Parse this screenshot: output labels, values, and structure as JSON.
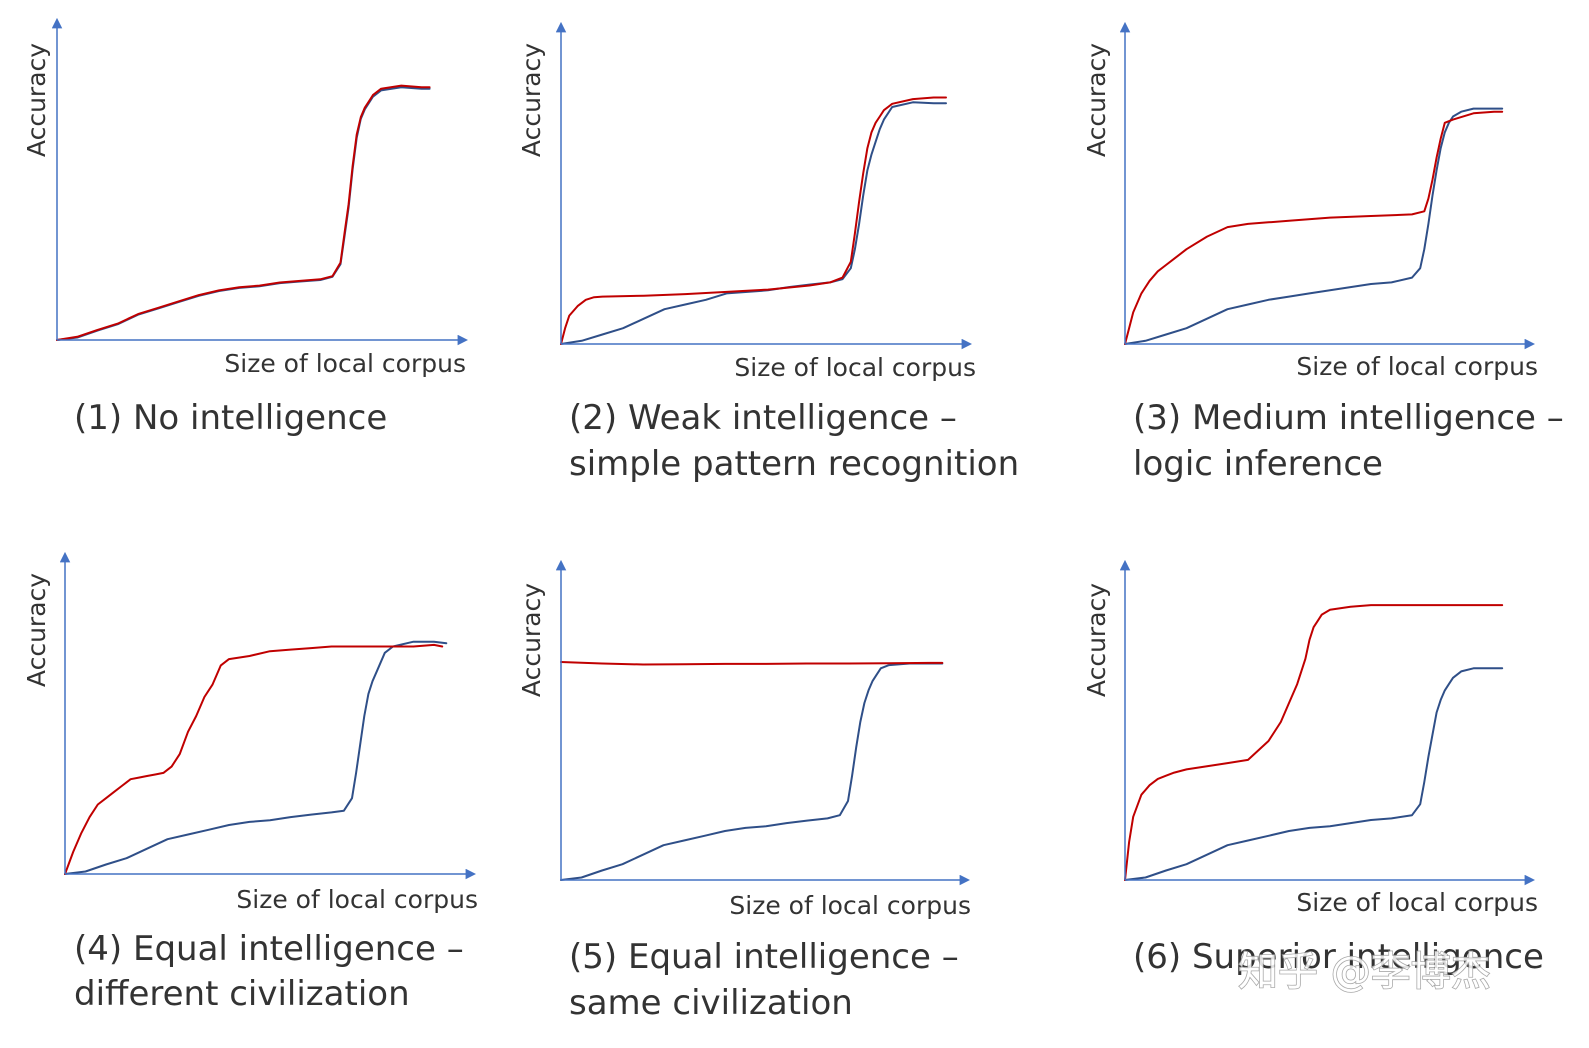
{
  "watermark": "知乎 @李博杰",
  "colors": {
    "axis": "#4472c4",
    "series_red": "#c00000",
    "series_blue": "#2f4f88",
    "text": "#333333"
  },
  "chart_data": [
    {
      "type": "line",
      "ylabel": "Accuracy",
      "xlabel": "Size of local corpus",
      "caption": [
        "(1) No intelligence"
      ],
      "xlim": [
        0,
        1
      ],
      "ylim": [
        0,
        1
      ],
      "grid": false,
      "series": [
        {
          "color": "#2f4f88",
          "x": [
            0,
            0.05,
            0.1,
            0.15,
            0.2,
            0.25,
            0.3,
            0.35,
            0.4,
            0.45,
            0.5,
            0.55,
            0.6,
            0.65,
            0.68,
            0.7,
            0.71,
            0.72,
            0.73,
            0.74,
            0.75,
            0.76,
            0.77,
            0.78,
            0.8,
            0.85,
            0.9,
            0.92
          ],
          "y": [
            0,
            0.008,
            0.03,
            0.05,
            0.08,
            0.1,
            0.12,
            0.14,
            0.155,
            0.165,
            0.17,
            0.18,
            0.185,
            0.19,
            0.2,
            0.24,
            0.33,
            0.42,
            0.54,
            0.64,
            0.7,
            0.73,
            0.75,
            0.77,
            0.79,
            0.8,
            0.795,
            0.795
          ]
        },
        {
          "color": "#c00000",
          "x": [
            0,
            0.05,
            0.1,
            0.15,
            0.2,
            0.25,
            0.3,
            0.35,
            0.4,
            0.45,
            0.5,
            0.55,
            0.6,
            0.65,
            0.68,
            0.7,
            0.71,
            0.72,
            0.73,
            0.74,
            0.75,
            0.76,
            0.77,
            0.78,
            0.8,
            0.85,
            0.9,
            0.92
          ],
          "y": [
            0,
            0.01,
            0.032,
            0.052,
            0.082,
            0.102,
            0.122,
            0.142,
            0.157,
            0.167,
            0.172,
            0.182,
            0.187,
            0.192,
            0.202,
            0.245,
            0.34,
            0.43,
            0.55,
            0.65,
            0.705,
            0.735,
            0.755,
            0.775,
            0.795,
            0.805,
            0.8,
            0.8
          ]
        }
      ]
    },
    {
      "type": "line",
      "ylabel": "Accuracy",
      "xlabel": "Size of local corpus",
      "caption": [
        "(2) Weak intelligence –",
        "simple pattern recognition"
      ],
      "xlim": [
        0,
        1
      ],
      "ylim": [
        0,
        1
      ],
      "grid": false,
      "series": [
        {
          "color": "#2f4f88",
          "x": [
            0,
            0.05,
            0.1,
            0.15,
            0.2,
            0.25,
            0.3,
            0.35,
            0.4,
            0.45,
            0.5,
            0.55,
            0.6,
            0.65,
            0.68,
            0.7,
            0.71,
            0.72,
            0.73,
            0.74,
            0.75,
            0.76,
            0.77,
            0.78,
            0.8,
            0.85,
            0.9,
            0.93
          ],
          "y": [
            0,
            0.01,
            0.03,
            0.05,
            0.08,
            0.11,
            0.125,
            0.14,
            0.16,
            0.165,
            0.17,
            0.18,
            0.188,
            0.195,
            0.205,
            0.24,
            0.3,
            0.38,
            0.47,
            0.55,
            0.6,
            0.64,
            0.68,
            0.71,
            0.75,
            0.765,
            0.762,
            0.762
          ]
        },
        {
          "color": "#c00000",
          "x": [
            0,
            0.01,
            0.02,
            0.04,
            0.06,
            0.08,
            0.1,
            0.2,
            0.3,
            0.4,
            0.5,
            0.6,
            0.65,
            0.68,
            0.7,
            0.71,
            0.72,
            0.73,
            0.74,
            0.75,
            0.76,
            0.77,
            0.78,
            0.8,
            0.85,
            0.9,
            0.93
          ],
          "y": [
            0,
            0.05,
            0.09,
            0.12,
            0.14,
            0.148,
            0.15,
            0.153,
            0.158,
            0.165,
            0.172,
            0.185,
            0.195,
            0.21,
            0.26,
            0.35,
            0.45,
            0.54,
            0.62,
            0.67,
            0.7,
            0.72,
            0.74,
            0.76,
            0.775,
            0.78,
            0.78
          ]
        }
      ]
    },
    {
      "type": "line",
      "ylabel": "Accuracy",
      "xlabel": "Size of local corpus",
      "caption": [
        "(3) Medium intelligence –",
        "logic inference"
      ],
      "xlim": [
        0,
        1
      ],
      "ylim": [
        0,
        1
      ],
      "grid": false,
      "series": [
        {
          "color": "#2f4f88",
          "x": [
            0,
            0.05,
            0.1,
            0.15,
            0.2,
            0.25,
            0.3,
            0.35,
            0.4,
            0.45,
            0.5,
            0.55,
            0.6,
            0.65,
            0.7,
            0.72,
            0.73,
            0.74,
            0.75,
            0.76,
            0.77,
            0.78,
            0.79,
            0.8,
            0.82,
            0.85,
            0.9,
            0.92
          ],
          "y": [
            0,
            0.01,
            0.03,
            0.05,
            0.08,
            0.11,
            0.125,
            0.14,
            0.15,
            0.16,
            0.17,
            0.18,
            0.19,
            0.195,
            0.21,
            0.24,
            0.3,
            0.38,
            0.47,
            0.55,
            0.62,
            0.67,
            0.7,
            0.72,
            0.735,
            0.745,
            0.745,
            0.745
          ]
        },
        {
          "color": "#c00000",
          "x": [
            0,
            0.01,
            0.02,
            0.04,
            0.06,
            0.08,
            0.1,
            0.12,
            0.15,
            0.2,
            0.25,
            0.3,
            0.35,
            0.4,
            0.5,
            0.6,
            0.7,
            0.73,
            0.74,
            0.75,
            0.76,
            0.77,
            0.78,
            0.8,
            0.85,
            0.9,
            0.92
          ],
          "y": [
            0,
            0.05,
            0.1,
            0.16,
            0.2,
            0.23,
            0.25,
            0.27,
            0.3,
            0.34,
            0.37,
            0.38,
            0.385,
            0.39,
            0.4,
            0.405,
            0.41,
            0.42,
            0.46,
            0.52,
            0.59,
            0.65,
            0.7,
            0.71,
            0.73,
            0.735,
            0.735
          ]
        }
      ]
    },
    {
      "type": "line",
      "ylabel": "Accuracy",
      "xlabel": "Size of local corpus",
      "caption": [
        "(4) Equal intelligence –",
        "different civilization"
      ],
      "xlim": [
        0,
        1
      ],
      "ylim": [
        0,
        1
      ],
      "grid": false,
      "series": [
        {
          "color": "#2f4f88",
          "x": [
            0,
            0.05,
            0.1,
            0.15,
            0.2,
            0.25,
            0.3,
            0.35,
            0.4,
            0.45,
            0.5,
            0.55,
            0.6,
            0.65,
            0.68,
            0.7,
            0.71,
            0.72,
            0.73,
            0.74,
            0.75,
            0.76,
            0.77,
            0.78,
            0.8,
            0.85,
            0.9,
            0.93
          ],
          "y": [
            0,
            0.008,
            0.03,
            0.05,
            0.08,
            0.11,
            0.125,
            0.14,
            0.155,
            0.165,
            0.17,
            0.18,
            0.188,
            0.195,
            0.2,
            0.24,
            0.32,
            0.41,
            0.5,
            0.57,
            0.61,
            0.64,
            0.67,
            0.7,
            0.72,
            0.735,
            0.735,
            0.73
          ]
        },
        {
          "color": "#c00000",
          "x": [
            0,
            0.02,
            0.04,
            0.06,
            0.08,
            0.1,
            0.12,
            0.14,
            0.16,
            0.18,
            0.2,
            0.22,
            0.24,
            0.26,
            0.28,
            0.3,
            0.32,
            0.34,
            0.36,
            0.38,
            0.4,
            0.45,
            0.5,
            0.55,
            0.6,
            0.65,
            0.7,
            0.75,
            0.8,
            0.85,
            0.9,
            0.92
          ],
          "y": [
            0,
            0.07,
            0.13,
            0.18,
            0.22,
            0.24,
            0.26,
            0.28,
            0.3,
            0.305,
            0.31,
            0.315,
            0.32,
            0.34,
            0.38,
            0.45,
            0.5,
            0.56,
            0.6,
            0.66,
            0.68,
            0.69,
            0.705,
            0.71,
            0.715,
            0.72,
            0.72,
            0.72,
            0.72,
            0.72,
            0.725,
            0.72
          ]
        }
      ]
    },
    {
      "type": "line",
      "ylabel": "Accuracy",
      "xlabel": "Size of local corpus",
      "caption": [
        "(5) Equal intelligence –",
        "same civilization"
      ],
      "xlim": [
        0,
        1
      ],
      "ylim": [
        0,
        1
      ],
      "grid": false,
      "series": [
        {
          "color": "#2f4f88",
          "x": [
            0,
            0.05,
            0.1,
            0.15,
            0.2,
            0.25,
            0.3,
            0.35,
            0.4,
            0.45,
            0.5,
            0.55,
            0.6,
            0.65,
            0.68,
            0.7,
            0.71,
            0.72,
            0.73,
            0.74,
            0.75,
            0.76,
            0.77,
            0.78,
            0.8,
            0.85,
            0.9,
            0.93
          ],
          "y": [
            0,
            0.008,
            0.03,
            0.05,
            0.08,
            0.11,
            0.125,
            0.14,
            0.155,
            0.165,
            0.17,
            0.18,
            0.188,
            0.195,
            0.205,
            0.25,
            0.33,
            0.42,
            0.5,
            0.56,
            0.6,
            0.63,
            0.65,
            0.67,
            0.68,
            0.685,
            0.685,
            0.685
          ]
        },
        {
          "color": "#c00000",
          "x": [
            0,
            0.1,
            0.2,
            0.3,
            0.4,
            0.5,
            0.6,
            0.7,
            0.8,
            0.9,
            0.93
          ],
          "y": [
            0.69,
            0.685,
            0.682,
            0.683,
            0.684,
            0.684,
            0.685,
            0.685,
            0.686,
            0.687,
            0.687
          ]
        }
      ]
    },
    {
      "type": "line",
      "ylabel": "Accuracy",
      "xlabel": "Size of local corpus",
      "caption": [
        "(6) Superior intelligence"
      ],
      "xlim": [
        0,
        1
      ],
      "ylim": [
        0,
        1
      ],
      "grid": false,
      "series": [
        {
          "color": "#2f4f88",
          "x": [
            0,
            0.05,
            0.1,
            0.15,
            0.2,
            0.25,
            0.3,
            0.35,
            0.4,
            0.45,
            0.5,
            0.55,
            0.6,
            0.65,
            0.7,
            0.72,
            0.73,
            0.74,
            0.75,
            0.76,
            0.77,
            0.78,
            0.79,
            0.8,
            0.82,
            0.85,
            0.9,
            0.92
          ],
          "y": [
            0,
            0.008,
            0.03,
            0.05,
            0.08,
            0.11,
            0.125,
            0.14,
            0.155,
            0.165,
            0.17,
            0.18,
            0.19,
            0.195,
            0.205,
            0.24,
            0.31,
            0.39,
            0.46,
            0.53,
            0.57,
            0.6,
            0.62,
            0.64,
            0.66,
            0.67,
            0.67,
            0.67
          ]
        },
        {
          "color": "#c00000",
          "x": [
            0,
            0.01,
            0.02,
            0.04,
            0.06,
            0.08,
            0.1,
            0.12,
            0.15,
            0.2,
            0.25,
            0.3,
            0.35,
            0.38,
            0.4,
            0.42,
            0.44,
            0.45,
            0.46,
            0.47,
            0.48,
            0.5,
            0.55,
            0.6,
            0.65,
            0.7,
            0.8,
            0.9,
            0.92
          ],
          "y": [
            0,
            0.12,
            0.2,
            0.27,
            0.3,
            0.32,
            0.33,
            0.34,
            0.35,
            0.36,
            0.37,
            0.38,
            0.44,
            0.5,
            0.56,
            0.62,
            0.7,
            0.76,
            0.8,
            0.82,
            0.84,
            0.855,
            0.865,
            0.87,
            0.87,
            0.87,
            0.87,
            0.87,
            0.87
          ]
        }
      ]
    }
  ]
}
